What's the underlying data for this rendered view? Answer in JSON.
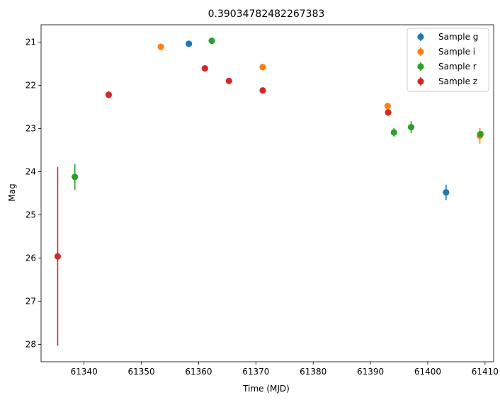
{
  "chart_data": {
    "type": "scatter",
    "title": "0.39034782482267383",
    "xlabel": "Time (MJD)",
    "ylabel": "Mag",
    "xlim": [
      61332.5,
      61411.5
    ],
    "ylim": [
      28.4,
      20.6
    ],
    "y_inverted": true,
    "xticks": [
      61340,
      61350,
      61360,
      61370,
      61380,
      61390,
      61400,
      61410
    ],
    "yticks": [
      21,
      22,
      23,
      24,
      25,
      26,
      27,
      28
    ],
    "grid": false,
    "legend_position": "top-right",
    "series": [
      {
        "name": "Sample g",
        "color": "#1f77b4",
        "points": [
          {
            "x": 61358.3,
            "y": 21.04,
            "err": 0.05
          },
          {
            "x": 61403.2,
            "y": 24.48,
            "err": 0.18
          }
        ]
      },
      {
        "name": "Sample i",
        "color": "#ff7f0e",
        "points": [
          {
            "x": 61353.4,
            "y": 21.11,
            "err": 0.03
          },
          {
            "x": 61371.2,
            "y": 21.58,
            "err": 0.03
          },
          {
            "x": 61393.0,
            "y": 22.48,
            "err": 0.05
          },
          {
            "x": 61409.1,
            "y": 23.17,
            "err": 0.18
          }
        ]
      },
      {
        "name": "Sample r",
        "color": "#2ca02c",
        "points": [
          {
            "x": 61338.4,
            "y": 24.12,
            "err": 0.3
          },
          {
            "x": 61362.3,
            "y": 20.97,
            "err": 0.05
          },
          {
            "x": 61394.1,
            "y": 23.09,
            "err": 0.1
          },
          {
            "x": 61397.1,
            "y": 22.97,
            "err": 0.14
          },
          {
            "x": 61409.2,
            "y": 23.13,
            "err": 0.06
          }
        ]
      },
      {
        "name": "Sample z",
        "color": "#d62728",
        "points": [
          {
            "x": 61335.4,
            "y": 25.96,
            "err": 2.07
          },
          {
            "x": 61344.3,
            "y": 22.22,
            "err": 0.08
          },
          {
            "x": 61361.1,
            "y": 21.61,
            "err": 0.04
          },
          {
            "x": 61365.3,
            "y": 21.9,
            "err": 0.04
          },
          {
            "x": 61371.2,
            "y": 22.12,
            "err": 0.07
          },
          {
            "x": 61393.1,
            "y": 22.63,
            "err": 0.08
          }
        ]
      }
    ]
  }
}
